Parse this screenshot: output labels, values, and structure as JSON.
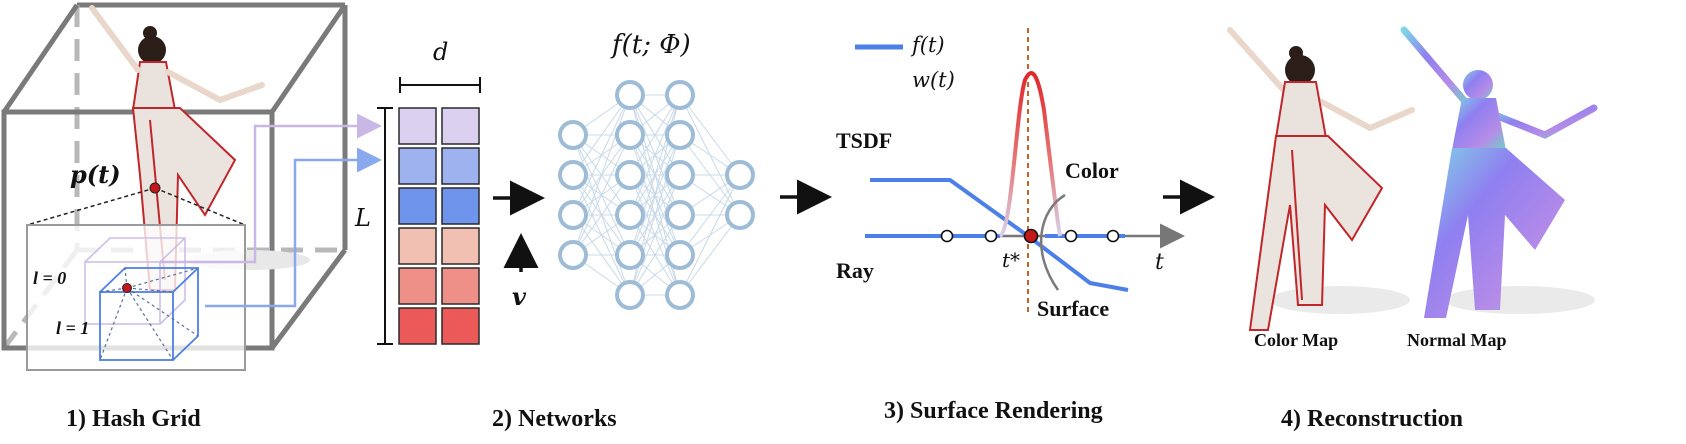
{
  "captions": {
    "hash_grid": "1) Hash Grid",
    "networks": "2) Networks",
    "surface_rendering": "3) Surface Rendering",
    "reconstruction": "4) Reconstruction"
  },
  "hash_grid": {
    "point_label": "p(t)",
    "level0_label": "l = 0",
    "level1_label": "l = 1"
  },
  "feature_table": {
    "width_label": "d",
    "levels_label": "L",
    "rows": 6,
    "cols": 2,
    "row_colors": [
      "#dcd0f0",
      "#9db2ef",
      "#6f94ec",
      "#f2c0b3",
      "#ee8f88",
      "#eb5a59"
    ]
  },
  "networks": {
    "function_label": "f(t; Φ)",
    "view_label": "v",
    "layer_sizes": [
      4,
      6,
      6,
      2
    ]
  },
  "surface": {
    "legend_f": "f(t)",
    "legend_w": "w(t)",
    "tsdf_label": "TSDF",
    "color_label": "Color",
    "ray_label": "Ray",
    "tstar_label": "t*",
    "t_label": "t",
    "surface_label": "Surface"
  },
  "reconstruction": {
    "color_map_label": "Color Map",
    "normal_map_label": "Normal Map"
  },
  "colors": {
    "tsdf_blue": "#4d7fe8",
    "weight_red": "#e22a2a",
    "grid_gray": "#7a7a7a",
    "node_blue": "#9fbcd6",
    "surface_dashed": "#c0652b"
  }
}
